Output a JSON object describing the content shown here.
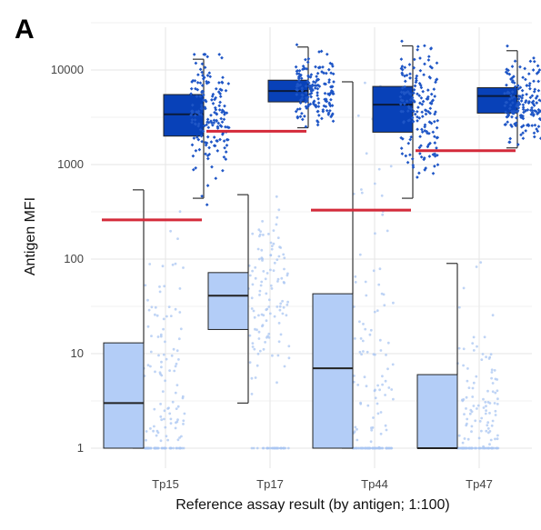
{
  "panel_label": "A",
  "chart_data": {
    "type": "box",
    "title": "",
    "xlabel": "Reference assay result (by antigen; 1:100)",
    "ylabel": "Antigen MFI",
    "y_scale": "log10",
    "ylim": [
      0.8,
      25000
    ],
    "y_ticks": [
      1,
      10,
      100,
      1000,
      10000
    ],
    "y_tick_labels": [
      "1",
      "10",
      "100",
      "1000",
      "10000"
    ],
    "grid": true,
    "legend": "none",
    "categories": [
      "Tp15",
      "Tp17",
      "Tp44",
      "Tp47"
    ],
    "colors": {
      "negative_fill": "#b3cdf7",
      "negative_points": "#a9c6f2",
      "positive_fill": "#0841b8",
      "positive_points": "#1f56c6",
      "cutoff": "#d42a3a",
      "whisker": "#333333"
    },
    "cutoffs": [
      260,
      2250,
      330,
      1400
    ],
    "groups": [
      {
        "name": "negative",
        "boxes": [
          {
            "category": "Tp15",
            "whisker_low": 1,
            "q1": 1,
            "median": 3,
            "q3": 13,
            "whisker_high": 540
          },
          {
            "category": "Tp17",
            "whisker_low": 3,
            "q1": 18,
            "median": 41,
            "q3": 72,
            "whisker_high": 480
          },
          {
            "category": "Tp44",
            "whisker_low": 1,
            "q1": 1,
            "median": 7,
            "q3": 43,
            "whisker_high": 7500
          },
          {
            "category": "Tp47",
            "whisker_low": 1,
            "q1": 1,
            "median": 1,
            "q3": 6,
            "whisker_high": 90
          }
        ]
      },
      {
        "name": "positive",
        "boxes": [
          {
            "category": "Tp15",
            "whisker_low": 440,
            "q1": 2000,
            "median": 3400,
            "q3": 5500,
            "whisker_high": 13000
          },
          {
            "category": "Tp17",
            "whisker_low": 2450,
            "q1": 4600,
            "median": 6000,
            "q3": 7800,
            "whisker_high": 17500
          },
          {
            "category": "Tp44",
            "whisker_low": 440,
            "q1": 2200,
            "median": 4300,
            "q3": 6700,
            "whisker_high": 18000
          },
          {
            "category": "Tp47",
            "whisker_low": 1500,
            "q1": 3500,
            "median": 5300,
            "q3": 6500,
            "whisker_high": 16000
          }
        ]
      }
    ]
  }
}
